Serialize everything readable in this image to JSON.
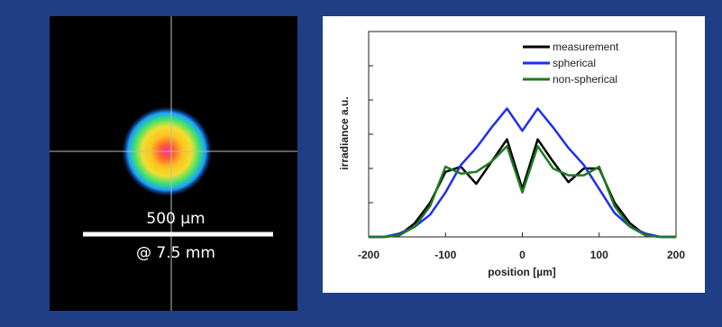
{
  "image_panel": {
    "scale_label": "500  µm",
    "distance_label": "@ 7.5 mm"
  },
  "chart_data": {
    "type": "line",
    "xlabel": "position [µm]",
    "ylabel": "irradiance a.u.",
    "x": [
      -200,
      -180,
      -160,
      -140,
      -120,
      -100,
      -80,
      -60,
      -40,
      -20,
      0,
      20,
      40,
      60,
      80,
      100,
      120,
      140,
      160,
      180,
      200
    ],
    "series": [
      {
        "name": "measurement",
        "color": "#000000",
        "values": [
          0,
          0,
          0.05,
          0.4,
          1.0,
          1.9,
          2.05,
          1.55,
          2.2,
          2.85,
          1.4,
          2.85,
          2.2,
          1.6,
          2.0,
          2.0,
          1.0,
          0.4,
          0.05,
          0,
          0
        ]
      },
      {
        "name": "spherical",
        "color": "#1e2ff0",
        "values": [
          0,
          0,
          0.1,
          0.3,
          0.65,
          1.3,
          2.1,
          2.6,
          3.2,
          3.75,
          3.1,
          3.75,
          3.2,
          2.6,
          2.1,
          1.4,
          0.7,
          0.3,
          0.1,
          0,
          0
        ]
      },
      {
        "name": "non-spherical",
        "color": "#1f7a1f",
        "values": [
          0,
          0,
          0.05,
          0.3,
          0.9,
          2.05,
          1.85,
          1.9,
          2.2,
          2.65,
          1.3,
          2.65,
          2.0,
          1.8,
          1.8,
          2.05,
          0.9,
          0.3,
          0.05,
          0,
          0
        ]
      }
    ],
    "xlim": [
      -200,
      200
    ],
    "xticks": [
      -200,
      -100,
      0,
      100,
      200
    ],
    "ylim": [
      0,
      6
    ],
    "yticks": [
      1,
      2,
      3,
      4,
      5
    ]
  }
}
